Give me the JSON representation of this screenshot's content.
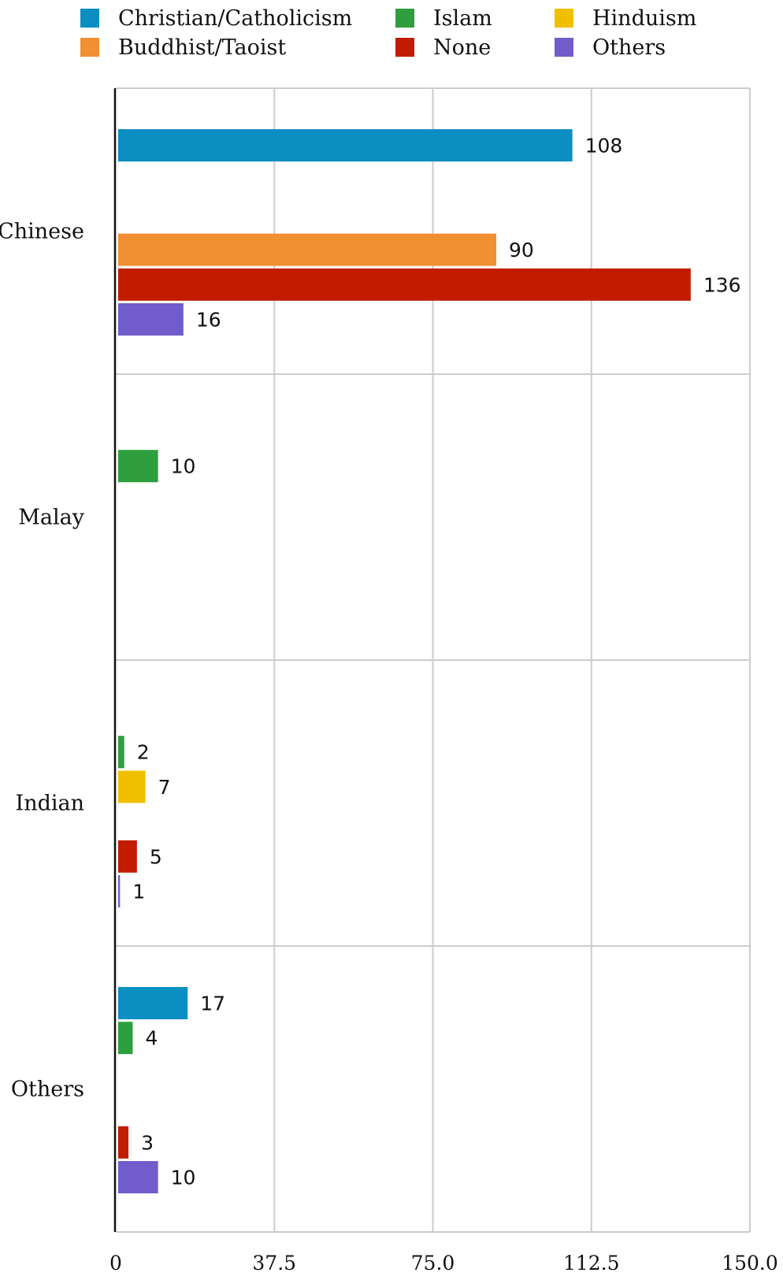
{
  "chart_data": {
    "type": "bar",
    "orientation": "horizontal",
    "categories": [
      "Chinese",
      "Malay",
      "Indian",
      "Others"
    ],
    "series": [
      {
        "name": "Christian/Catholicism",
        "color": "#0b8ec2",
        "values": [
          108,
          null,
          null,
          17
        ]
      },
      {
        "name": "Islam",
        "color": "#2e9e3e",
        "values": [
          null,
          10,
          2,
          4
        ]
      },
      {
        "name": "Hinduism",
        "color": "#f0c000",
        "values": [
          null,
          null,
          7,
          null
        ]
      },
      {
        "name": "Buddhist/Taoist",
        "color": "#f18f33",
        "values": [
          90,
          null,
          null,
          null
        ]
      },
      {
        "name": "None",
        "color": "#c21c00",
        "values": [
          136,
          null,
          5,
          3
        ]
      },
      {
        "name": "Others",
        "color": "#715ccc",
        "values": [
          16,
          null,
          1,
          10
        ]
      }
    ],
    "xlim": [
      0,
      150
    ],
    "x_ticks": [
      "0",
      "37.5",
      "75.0",
      "112.5",
      "150.0"
    ],
    "legend_position": "top",
    "grid": true,
    "title": "",
    "xlabel": "",
    "ylabel": ""
  }
}
